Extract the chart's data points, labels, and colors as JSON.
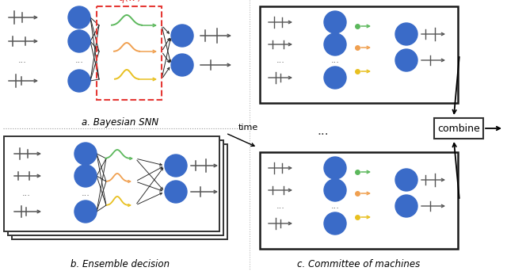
{
  "fig_width": 6.4,
  "fig_height": 3.42,
  "bg_color": "#ffffff",
  "blue_node": "#3a6bc8",
  "green_color": "#5cb85c",
  "orange_color": "#f0a050",
  "yellow_color": "#e8c020",
  "red_dashed_color": "#e53935",
  "gray_spike": "#555555",
  "title_a": "a. Bayesian SNN",
  "title_b": "b. Ensemble decision",
  "title_c": "c. Committee of machines",
  "combine_label": "combine"
}
